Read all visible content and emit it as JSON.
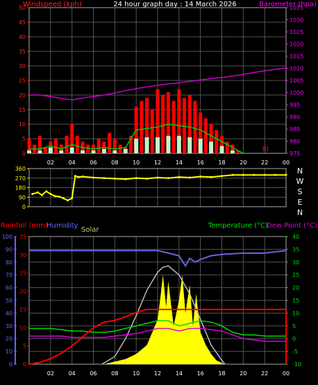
{
  "chart_data": [
    {
      "type": "line",
      "title": "24 hour graph day : 14 March 2026",
      "left_axis_label": "Windspeed (kph)",
      "right_axis_label": "Barometer (hpa)",
      "left_ylim": [
        0,
        50
      ],
      "left_ticks": [
        "0",
        "5",
        "10",
        "15",
        "20",
        "25",
        "30",
        "35",
        "40",
        "45",
        "50"
      ],
      "right_ylim": [
        975,
        1035
      ],
      "right_ticks": [
        "975",
        "980",
        "985",
        "990",
        "995",
        "1000",
        "1005",
        "1010",
        "1015",
        "1020",
        "1025",
        "1030",
        "1035"
      ],
      "x_ticks": [
        "02",
        "04",
        "06",
        "08",
        "10",
        "12",
        "14",
        "16",
        "18",
        "20",
        "22",
        "00"
      ],
      "xlim": [
        0,
        24
      ],
      "annotation": "BI",
      "colors": {
        "gust": "#ff0000",
        "average": "#00cc00",
        "direction_avg": "#c8f0c8",
        "barometer": "#cc00cc",
        "axis_left": "#ff0000",
        "axis_right": "#ff00ff"
      },
      "series": [
        {
          "role": "barometer",
          "x": [
            0,
            1,
            2,
            3,
            4,
            5,
            6,
            7,
            8,
            9,
            10,
            11,
            12,
            13,
            14,
            15,
            16,
            17,
            18,
            19,
            20,
            21,
            22,
            23,
            24
          ],
          "values": [
            999,
            999,
            998.4,
            997.6,
            997,
            997.8,
            998.4,
            999,
            999.8,
            1000.8,
            1001.6,
            1002.4,
            1003,
            1003.6,
            1004,
            1004.6,
            1005.2,
            1005.8,
            1006.2,
            1006.8,
            1007.5,
            1008.3,
            1009,
            1009.6,
            1010.2
          ]
        },
        {
          "role": "gust",
          "x": [
            0,
            0.5,
            1,
            1.5,
            2,
            2.5,
            3,
            3.5,
            4,
            4.5,
            5,
            5.5,
            6,
            6.5,
            7,
            7.5,
            8,
            8.5,
            9,
            9.5,
            10,
            10.5,
            11,
            11.5,
            12,
            12.5,
            13,
            13.5,
            14,
            14.5,
            15,
            15.5,
            16,
            16.5,
            17,
            17.5,
            18,
            18.5,
            19,
            19.5,
            20
          ],
          "values": [
            5,
            3,
            6,
            2,
            4,
            5,
            3,
            6,
            10,
            6,
            4,
            3,
            3,
            5,
            4,
            7,
            5,
            3,
            2,
            6,
            16,
            18,
            19,
            15,
            22,
            20,
            21,
            18,
            22,
            19,
            20,
            18,
            14,
            12,
            10,
            8,
            6,
            4,
            3,
            1,
            0
          ]
        },
        {
          "role": "average",
          "x": [
            0,
            1,
            2,
            3,
            4,
            5,
            6,
            7,
            8,
            9,
            10,
            11,
            12,
            13,
            14,
            15,
            16,
            17,
            18,
            19,
            20
          ],
          "values": [
            1.5,
            1.5,
            2.5,
            1.5,
            3,
            2,
            1.5,
            2,
            1.5,
            2,
            8,
            8.5,
            9,
            10,
            9.5,
            9,
            8,
            6,
            4,
            2,
            0
          ]
        },
        {
          "role": "direction_avg",
          "x": [
            0,
            1,
            2,
            3,
            4,
            5,
            6,
            7,
            8,
            9,
            10,
            11,
            12,
            13,
            14,
            15,
            16,
            17,
            18,
            19,
            20
          ],
          "values": [
            1,
            1,
            2,
            1,
            2,
            1,
            1,
            1.5,
            1,
            1.5,
            5,
            5.5,
            5.5,
            6,
            6,
            5.5,
            5,
            4,
            2.5,
            1,
            0
          ]
        }
      ]
    },
    {
      "type": "scatter",
      "left_ticks": [
        "360",
        "270",
        "180",
        "90",
        "0"
      ],
      "right_labels": [
        "N",
        "W",
        "S",
        "E",
        "N"
      ],
      "ylim": [
        0,
        360
      ],
      "xlim": [
        0,
        24
      ],
      "color": "#ffff00",
      "series": [
        {
          "role": "wind_direction",
          "x": [
            0.3,
            0.8,
            1.2,
            1.6,
            2,
            2.4,
            2.8,
            3.2,
            3.6,
            4,
            4.3,
            4.6,
            5,
            6,
            7,
            8,
            9,
            10,
            11,
            12,
            13,
            14,
            15,
            16,
            17,
            18,
            19,
            20,
            21,
            22,
            23,
            24
          ],
          "values": [
            120,
            135,
            110,
            145,
            120,
            100,
            95,
            80,
            60,
            80,
            290,
            280,
            285,
            275,
            270,
            265,
            260,
            270,
            265,
            275,
            270,
            280,
            275,
            285,
            280,
            290,
            300,
            300,
            300,
            300,
            300,
            300
          ]
        }
      ]
    },
    {
      "type": "line",
      "rainfall_axis_label": "Rainfall (mm)",
      "humidity_axis_label": "Humidity",
      "solar_label": "Solar",
      "temperature_axis_label": "Temperature (°C)",
      "dewpoint_axis_label": "Dew Point (°C)",
      "humidity_ticks": [
        "0",
        "10",
        "20",
        "30",
        "40",
        "50",
        "60",
        "70",
        "80",
        "90",
        "100"
      ],
      "rainfall_ticks": [
        "0",
        "5",
        "10",
        "15",
        "20",
        "25",
        "30",
        "35"
      ],
      "temperature_ticks": [
        "-10",
        "-5",
        "0",
        "5",
        "10",
        "15",
        "20",
        "25",
        "30",
        "35",
        "40"
      ],
      "humidity_ylim": [
        0,
        100
      ],
      "rainfall_ylim": [
        0,
        35
      ],
      "temperature_ylim": [
        -10,
        40
      ],
      "x_ticks": [
        "02",
        "04",
        "06",
        "08",
        "10",
        "12",
        "14",
        "16",
        "18",
        "20",
        "22",
        "00"
      ],
      "xlim": [
        0,
        24
      ],
      "colors": {
        "rain": "#ff0000",
        "humidity": "#6666dd",
        "solar": "#ffff00",
        "solar_max": "#bbbbbb",
        "temperature": "#00dd00",
        "dewpoint": "#dd00dd",
        "axis_humidity": "#6666ff",
        "axis_rain": "#ff0000",
        "axis_temp": "#00dd00"
      },
      "series": [
        {
          "role": "humidity",
          "x": [
            0,
            2,
            4,
            6,
            8,
            10,
            12,
            13,
            14,
            14.6,
            15,
            15.5,
            16,
            17,
            18,
            20,
            22,
            24
          ],
          "values": [
            89,
            89,
            89,
            89,
            89,
            89,
            89,
            87,
            85,
            77,
            83,
            80,
            82,
            85,
            86,
            87,
            87,
            89
          ]
        },
        {
          "role": "rainfall",
          "x": [
            0,
            1,
            2,
            3,
            4,
            5,
            6,
            7,
            8,
            9,
            10,
            11,
            12,
            24
          ],
          "values": [
            0,
            0.5,
            1.5,
            3,
            5,
            7.5,
            10,
            11.5,
            12,
            13,
            14.2,
            15,
            15,
            15
          ]
        },
        {
          "role": "temperature",
          "x": [
            0,
            1,
            2,
            3,
            4,
            5,
            6,
            7,
            8,
            9,
            10,
            11,
            12,
            13,
            14,
            15,
            16,
            17,
            18,
            19,
            20,
            21,
            22,
            23,
            24
          ],
          "values": [
            4,
            4,
            4,
            3.5,
            3,
            3,
            2.5,
            2.5,
            3,
            4,
            5,
            6,
            7,
            7,
            5,
            6,
            7,
            6.5,
            5,
            2.5,
            1.5,
            1.5,
            1,
            1,
            1
          ]
        },
        {
          "role": "dewpoint",
          "x": [
            0,
            1,
            2,
            3,
            4,
            5,
            6,
            7,
            8,
            9,
            10,
            11,
            12,
            13,
            14,
            15,
            16,
            17,
            18,
            19,
            20,
            21,
            22,
            23,
            24
          ],
          "values": [
            1,
            1,
            1,
            1,
            0.5,
            0.5,
            0.5,
            0.5,
            1,
            1.5,
            2,
            3,
            4,
            4,
            3,
            4,
            4,
            3.5,
            3,
            1.5,
            0,
            -0.5,
            -1,
            -1,
            -1
          ]
        },
        {
          "role": "solar_max",
          "x": [
            6.8,
            8,
            9,
            10,
            11,
            12,
            12.5,
            13,
            14,
            15,
            16,
            17,
            18,
            18.3
          ],
          "values": [
            0,
            6,
            20,
            38,
            58,
            72,
            76,
            77,
            70,
            55,
            35,
            15,
            3,
            0
          ]
        },
        {
          "role": "solar",
          "x": [
            7,
            8,
            9,
            10,
            11,
            11.5,
            12,
            12.3,
            12.5,
            12.8,
            13,
            13.5,
            14,
            14.3,
            14.6,
            15,
            15.3,
            15.6,
            16,
            16.5,
            17,
            17.5,
            18,
            18.3
          ],
          "values": [
            0,
            2,
            4,
            8,
            15,
            25,
            35,
            55,
            70,
            45,
            65,
            30,
            50,
            70,
            40,
            62,
            30,
            55,
            25,
            15,
            8,
            3,
            1,
            0
          ]
        }
      ]
    }
  ]
}
